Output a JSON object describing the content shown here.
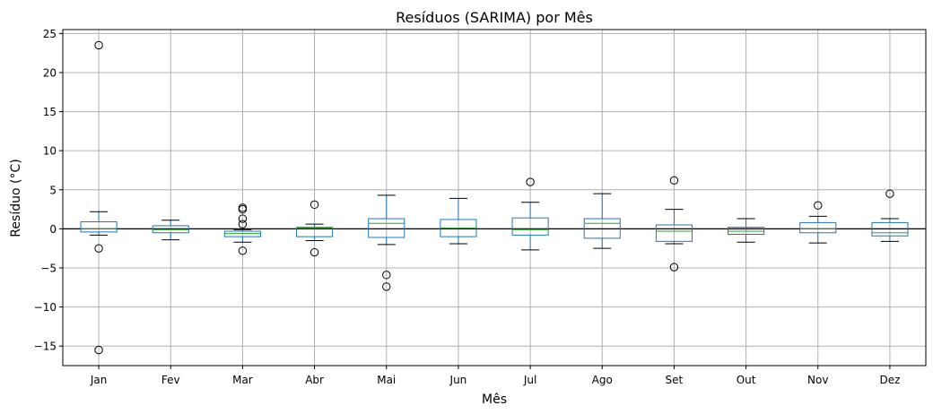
{
  "chart_data": {
    "type": "box",
    "title": "Resíduos (SARIMA) por Mês",
    "xlabel": "Mês",
    "ylabel": "Resíduo (°C)",
    "ylim": [
      -17.5,
      25.5
    ],
    "yticks": [
      -15,
      -10,
      -5,
      0,
      5,
      10,
      15,
      20,
      25
    ],
    "ytick_labels": [
      "−15",
      "−10",
      "−5",
      "0",
      "5",
      "10",
      "15",
      "20",
      "25"
    ],
    "grid": true,
    "reference_line_y": 0,
    "categories": [
      "Jan",
      "Fev",
      "Mar",
      "Abr",
      "Mai",
      "Jun",
      "Jul",
      "Ago",
      "Set",
      "Out",
      "Nov",
      "Dez"
    ],
    "boxes": [
      {
        "whisker_low": -0.8,
        "q1": -0.4,
        "median": 0.0,
        "q3": 0.9,
        "whisker_high": 2.2,
        "outliers": [
          23.5,
          -2.5,
          -15.5
        ]
      },
      {
        "whisker_low": -1.4,
        "q1": -0.5,
        "median": -0.1,
        "q3": 0.4,
        "whisker_high": 1.1,
        "outliers": []
      },
      {
        "whisker_low": -1.7,
        "q1": -1.0,
        "median": -0.6,
        "q3": -0.3,
        "whisker_high": -0.1,
        "outliers": [
          2.7,
          2.5,
          1.3,
          0.6,
          -2.8
        ]
      },
      {
        "whisker_low": -1.5,
        "q1": -1.0,
        "median": 0.1,
        "q3": 0.2,
        "whisker_high": 0.6,
        "outliers": [
          3.1,
          -3.0
        ]
      },
      {
        "whisker_low": -2.0,
        "q1": -1.1,
        "median": 0.7,
        "q3": 1.3,
        "whisker_high": 4.3,
        "outliers": [
          -5.9,
          -7.4
        ]
      },
      {
        "whisker_low": -1.9,
        "q1": -1.0,
        "median": 0.1,
        "q3": 1.2,
        "whisker_high": 3.9,
        "outliers": []
      },
      {
        "whisker_low": -2.7,
        "q1": -0.8,
        "median": -0.1,
        "q3": 1.4,
        "whisker_high": 3.4,
        "outliers": [
          6.0
        ]
      },
      {
        "whisker_low": -2.5,
        "q1": -1.2,
        "median": 0.7,
        "q3": 1.3,
        "whisker_high": 4.5,
        "outliers": []
      },
      {
        "whisker_low": -1.9,
        "q1": -1.6,
        "median": -0.3,
        "q3": 0.5,
        "whisker_high": 2.5,
        "outliers": [
          6.2,
          -4.9
        ]
      },
      {
        "whisker_low": -1.7,
        "q1": -0.7,
        "median": -0.3,
        "q3": 0.2,
        "whisker_high": 1.3,
        "outliers": []
      },
      {
        "whisker_low": -1.8,
        "q1": -0.5,
        "median": 0.0,
        "q3": 0.8,
        "whisker_high": 1.6,
        "outliers": [
          3.0
        ]
      },
      {
        "whisker_low": -1.6,
        "q1": -0.9,
        "median": -0.5,
        "q3": 0.8,
        "whisker_high": 1.3,
        "outliers": [
          4.5
        ]
      }
    ],
    "colors": {
      "box": "#1f77b4",
      "median": "#2ca02c",
      "grid": "#b0b0b0",
      "reference": "#000000"
    }
  }
}
